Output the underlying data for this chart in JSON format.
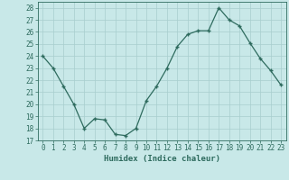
{
  "x": [
    0,
    1,
    2,
    3,
    4,
    5,
    6,
    7,
    8,
    9,
    10,
    11,
    12,
    13,
    14,
    15,
    16,
    17,
    18,
    19,
    20,
    21,
    22,
    23
  ],
  "y": [
    24.0,
    23.0,
    21.5,
    20.0,
    18.0,
    18.8,
    18.7,
    17.5,
    17.4,
    18.0,
    20.3,
    21.5,
    23.0,
    24.8,
    25.8,
    26.1,
    26.1,
    28.0,
    27.0,
    26.5,
    25.1,
    23.8,
    22.8,
    21.6
  ],
  "xlim": [
    -0.5,
    23.5
  ],
  "ylim": [
    17,
    28.5
  ],
  "yticks": [
    17,
    18,
    19,
    20,
    21,
    22,
    23,
    24,
    25,
    26,
    27,
    28
  ],
  "xticks": [
    0,
    1,
    2,
    3,
    4,
    5,
    6,
    7,
    8,
    9,
    10,
    11,
    12,
    13,
    14,
    15,
    16,
    17,
    18,
    19,
    20,
    21,
    22,
    23
  ],
  "xlabel": "Humidex (Indice chaleur)",
  "line_color": "#2e6b5e",
  "marker": "+",
  "bg_color": "#c8e8e8",
  "grid_color": "#a8cece",
  "text_color": "#2e6b5e",
  "tick_fontsize": 5.5,
  "xlabel_fontsize": 6.5,
  "xlabel_fontweight": "bold"
}
